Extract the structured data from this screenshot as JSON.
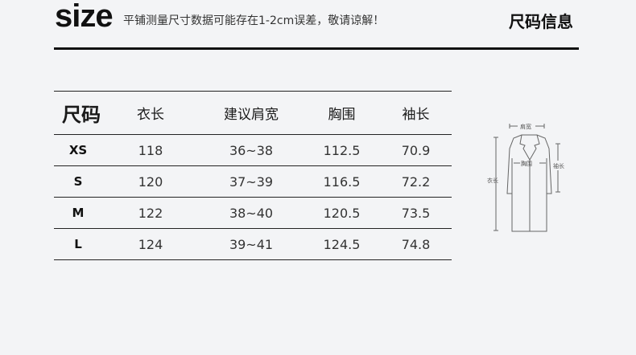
{
  "header": {
    "logo": "size",
    "note": "平铺测量尺寸数据可能存在1-2cm误差，敬请谅解！",
    "title": "尺码信息"
  },
  "table": {
    "columns": [
      "尺码",
      "衣长",
      "建议肩宽",
      "胸围",
      "袖长"
    ],
    "rows": [
      [
        "XS",
        "118",
        "36~38",
        "112.5",
        "70.9"
      ],
      [
        "S",
        "120",
        "37~39",
        "116.5",
        "72.2"
      ],
      [
        "M",
        "122",
        "38~40",
        "120.5",
        "73.5"
      ],
      [
        "L",
        "124",
        "39~41",
        "124.5",
        "74.8"
      ]
    ]
  },
  "diagram": {
    "shoulder": "肩宽",
    "chest": "胸围",
    "sleeve": "袖长",
    "length": "衣长"
  }
}
